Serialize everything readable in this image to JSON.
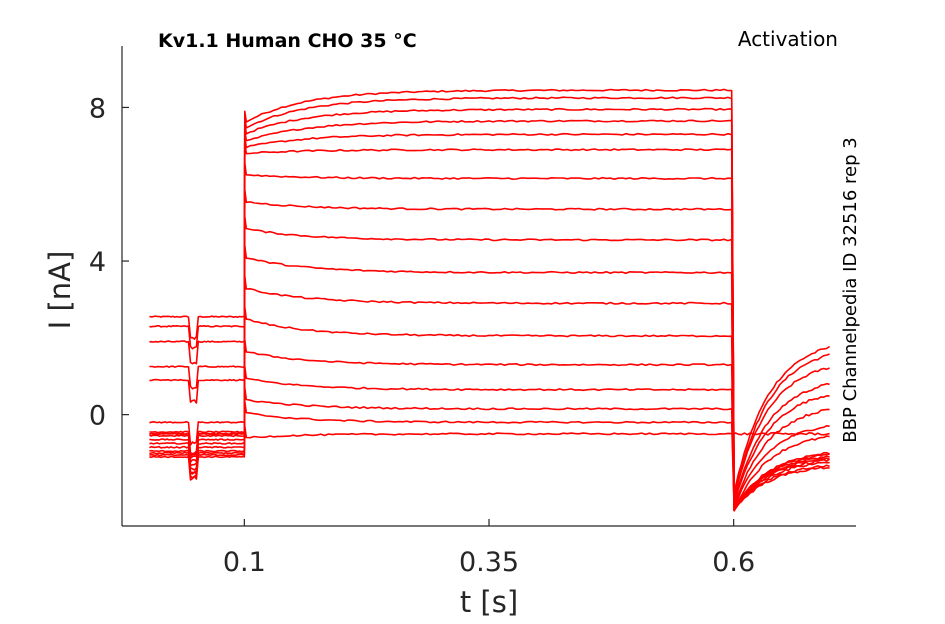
{
  "chart_data": {
    "type": "line",
    "title": "Kv1.1  Human  CHO  35 °C",
    "corner_label": "Activation",
    "side_label": "BBP Channelpedia ID 32516 rep 3",
    "xlabel": "t [s]",
    "ylabel": "I [nA]",
    "xlim": [
      -0.025,
      0.725
    ],
    "ylim": [
      -2.9,
      9.6
    ],
    "xticks": [
      0.1,
      0.35,
      0.6
    ],
    "xtick_labels": [
      "0.1",
      "0.35",
      "0.6"
    ],
    "yticks": [
      0,
      4,
      8
    ],
    "ytick_labels": [
      "0",
      "4",
      "8"
    ],
    "grid": false,
    "line_color": "#ff0000",
    "x_range_data": [
      0.003,
      0.7
    ],
    "protocol_times": {
      "artifact_start": 0.045,
      "artifact_end": 0.052,
      "step_on": 0.1,
      "step_off": 0.6
    },
    "series": [
      {
        "pre": 2.55,
        "step_start": 7.6,
        "step_end": 8.45,
        "tail_start": -2.1,
        "tail_end": 2.0
      },
      {
        "pre": 2.3,
        "step_start": 7.45,
        "step_end": 8.25,
        "tail_start": -2.2,
        "tail_end": 1.8
      },
      {
        "pre": 1.9,
        "step_start": 7.3,
        "step_end": 7.95,
        "tail_start": -2.2,
        "tail_end": 1.45
      },
      {
        "pre": 1.25,
        "step_start": 7.1,
        "step_end": 7.65,
        "tail_start": -2.3,
        "tail_end": 1.0
      },
      {
        "pre": 0.9,
        "step_start": 6.95,
        "step_end": 7.3,
        "tail_start": -2.35,
        "tail_end": 0.7
      },
      {
        "pre": -0.2,
        "step_start": 6.8,
        "step_end": 6.9,
        "tail_start": -2.4,
        "tail_end": 0.3
      },
      {
        "pre": -0.45,
        "step_start": 6.25,
        "step_end": 6.15,
        "tail_start": -2.45,
        "tail_end": -0.15
      },
      {
        "pre": -0.5,
        "step_start": 5.55,
        "step_end": 5.35,
        "tail_start": -2.5,
        "tail_end": -0.45
      },
      {
        "pre": -0.55,
        "step_start": 4.85,
        "step_end": 4.55,
        "tail_start": -2.5,
        "tail_end": -0.9
      },
      {
        "pre": -0.65,
        "step_start": 4.1,
        "step_end": 3.7,
        "tail_start": -2.5,
        "tail_end": -0.95
      },
      {
        "pre": -0.75,
        "step_start": 3.3,
        "step_end": 2.9,
        "tail_start": -2.5,
        "tail_end": -1.0
      },
      {
        "pre": -0.85,
        "step_start": 2.5,
        "step_end": 2.05,
        "tail_start": -2.5,
        "tail_end": -1.05
      },
      {
        "pre": -0.95,
        "step_start": 1.65,
        "step_end": 1.3,
        "tail_start": -2.5,
        "tail_end": -1.1
      },
      {
        "pre": -1.0,
        "step_start": 0.95,
        "step_end": 0.65,
        "tail_start": -2.5,
        "tail_end": -1.15
      },
      {
        "pre": -1.05,
        "step_start": 0.4,
        "step_end": 0.15,
        "tail_start": -2.5,
        "tail_end": -1.25
      },
      {
        "pre": -1.1,
        "step_start": 0.05,
        "step_end": -0.2,
        "tail_start": -2.5,
        "tail_end": -1.3
      },
      {
        "pre": -0.5,
        "step_start": -0.6,
        "step_end": -0.5,
        "tail_start": -0.5,
        "tail_end": -0.5
      }
    ]
  }
}
